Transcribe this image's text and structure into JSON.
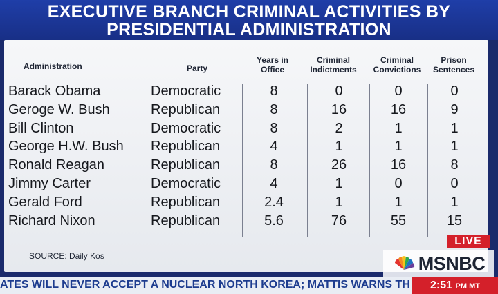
{
  "banner": {
    "line1": "EXECUTIVE BRANCH CRIMINAL ACTIVITIES BY",
    "line2": "PRESIDENTIAL ADMINISTRATION"
  },
  "table": {
    "headers": {
      "administration": "Administration",
      "party": "Party",
      "years": "Years in Office",
      "indictments": "Criminal Indictments",
      "convictions": "Criminal Convictions",
      "sentences": "Prison Sentences"
    },
    "rows": [
      {
        "administration": "Barack Obama",
        "party": "Democratic",
        "years": "8",
        "indictments": "0",
        "convictions": "0",
        "sentences": "0"
      },
      {
        "administration": "Geroge W. Bush",
        "party": "Republican",
        "years": "8",
        "indictments": "16",
        "convictions": "16",
        "sentences": "9"
      },
      {
        "administration": "Bill Clinton",
        "party": "Democratic",
        "years": "8",
        "indictments": "2",
        "convictions": "1",
        "sentences": "1"
      },
      {
        "administration": "George H.W. Bush",
        "party": "Republican",
        "years": "4",
        "indictments": "1",
        "convictions": "1",
        "sentences": "1"
      },
      {
        "administration": "Ronald Reagan",
        "party": "Republican",
        "years": "8",
        "indictments": "26",
        "convictions": "16",
        "sentences": "8"
      },
      {
        "administration": "Jimmy Carter",
        "party": "Democratic",
        "years": "4",
        "indictments": "1",
        "convictions": "0",
        "sentences": "0"
      },
      {
        "administration": "Gerald Ford",
        "party": "Republican",
        "years": "2.4",
        "indictments": "1",
        "convictions": "1",
        "sentences": "1"
      },
      {
        "administration": "Richard Nixon",
        "party": "Republican",
        "years": "5.6",
        "indictments": "76",
        "convictions": "55",
        "sentences": "15"
      }
    ],
    "source": "SOURCE: Daily Kos"
  },
  "branding": {
    "live_label": "LIVE",
    "network": "MSNBC",
    "logo_icon": "nbc-peacock-icon"
  },
  "ticker": {
    "headline": "ATES WILL NEVER ACCEPT A NUCLEAR NORTH KOREA; MATTIS WARNS TH",
    "time": "2:51",
    "zone": "PM MT"
  },
  "colors": {
    "banner_blue": "#1f3ea8",
    "live_red": "#d4202a",
    "ticker_text": "#1d3c8f"
  }
}
